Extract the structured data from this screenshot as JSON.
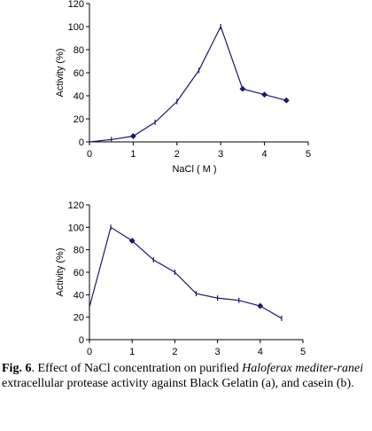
{
  "chart_data": [
    {
      "type": "line",
      "title": "",
      "xlabel": "NaCl ( M )",
      "ylabel": "Activity (%)",
      "xlim": [
        0,
        5
      ],
      "ylim": [
        0,
        120
      ],
      "xticks": [
        0,
        1,
        2,
        3,
        4,
        5
      ],
      "yticks": [
        0,
        20,
        40,
        60,
        80,
        100,
        120
      ],
      "grid": false,
      "legend": "none",
      "series": [
        {
          "x": [
            0,
            0.5,
            1,
            1.5,
            2,
            2.5,
            3,
            3.5,
            4,
            4.5
          ],
          "values": [
            0,
            2,
            5,
            17,
            35,
            62,
            100,
            46,
            41,
            36
          ],
          "marker_diamond_indices": [
            2,
            7,
            8,
            9
          ]
        }
      ],
      "color": "#1a1a6e"
    },
    {
      "type": "line",
      "title": "",
      "xlabel": "NaCl ( M )",
      "ylabel": "Activity (%)",
      "xlim": [
        0,
        5
      ],
      "ylim": [
        0,
        120
      ],
      "xticks": [
        0,
        1,
        2,
        3,
        4,
        5
      ],
      "yticks": [
        0,
        20,
        40,
        60,
        80,
        100,
        120
      ],
      "grid": false,
      "legend": "none",
      "series": [
        {
          "x": [
            0,
            0.5,
            1,
            1.5,
            2,
            2.5,
            3,
            3.5,
            4,
            4.5
          ],
          "values": [
            29,
            100,
            88,
            71,
            60,
            41,
            37,
            35,
            30,
            19
          ],
          "marker_diamond_indices": [
            2,
            8
          ]
        }
      ],
      "color": "#1a1a6e"
    }
  ],
  "caption": {
    "fig_label": "Fig. 6",
    "text_1": ". Effect of NaCl concentration on purified ",
    "species": "Haloferax mediter-ranei",
    "text_2": " extracellular protease activity against Black Gelatin (a), and casein (b)."
  }
}
